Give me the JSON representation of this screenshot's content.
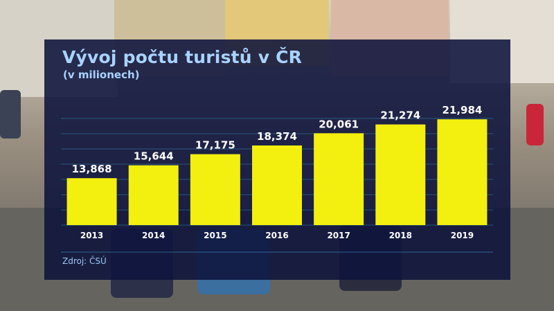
{
  "colors": {
    "panel": "#0e133c",
    "bar": "#f3ef0f",
    "title": "#a9d3ff",
    "grid": "#3aa7d8",
    "text": "#ffffff"
  },
  "chart_data": {
    "type": "bar",
    "title": "Vývoj počtu turistů v ČR",
    "subtitle": "(v milionech)",
    "categories": [
      "2013",
      "2014",
      "2015",
      "2016",
      "2017",
      "2018",
      "2019"
    ],
    "values": [
      13.868,
      15.644,
      17.175,
      18.374,
      20.061,
      21.274,
      21.984
    ],
    "value_labels": [
      "13,868",
      "15,644",
      "17,175",
      "18,374",
      "20,061",
      "21,274",
      "21,984"
    ],
    "ylim": [
      7.4,
      22.1
    ],
    "grid": true
  },
  "source": "Zdroj: ČSÚ"
}
